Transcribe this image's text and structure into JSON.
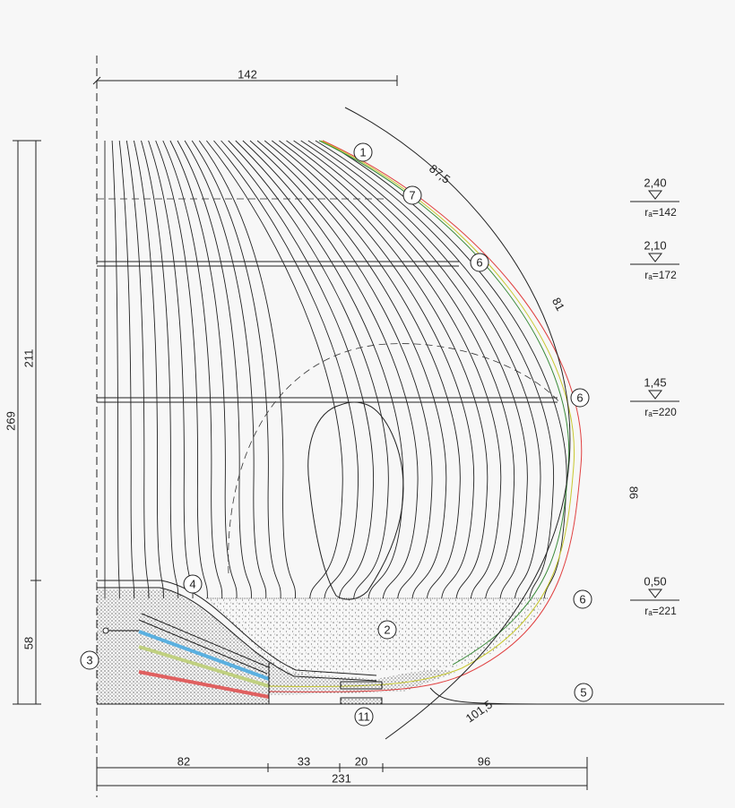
{
  "dimensions": {
    "top": "142",
    "arc_upper": "87,5",
    "arc_middle": "81",
    "arc_lower": "86",
    "arc_bottom": "101,5",
    "total_height": "269",
    "upper_height": "211",
    "lower_height": "58",
    "bottom_segments": [
      "82",
      "33",
      "20",
      "96"
    ],
    "total_width": "231"
  },
  "levels": [
    {
      "elevation": "2,40",
      "radius": "rₐ=142"
    },
    {
      "elevation": "2,10",
      "radius": "rₐ=172"
    },
    {
      "elevation": "1,45",
      "radius": "rₐ=220"
    },
    {
      "elevation": "0,50",
      "radius": "rₐ=221"
    }
  ],
  "markers": [
    "1",
    "7",
    "6",
    "6",
    "6",
    "4",
    "2",
    "3",
    "5",
    "11"
  ]
}
